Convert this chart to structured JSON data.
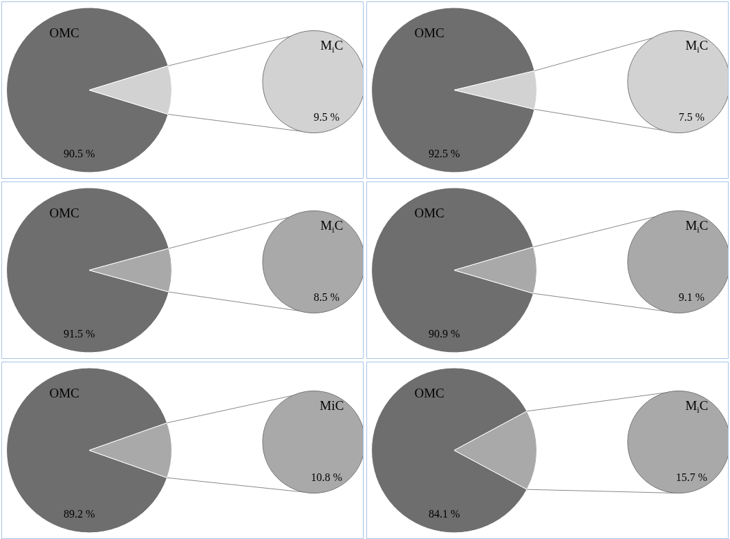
{
  "chart_data": [
    {
      "type": "pie",
      "categories": [
        "OMC",
        "M$_{i}$C"
      ],
      "values": [
        90.5,
        9.5
      ],
      "colors": [
        "#6e6e6e",
        "#d2d2d2"
      ],
      "value_labels": [
        "90.5 %",
        "9.5 %"
      ]
    },
    {
      "type": "pie",
      "categories": [
        "OMC",
        "M$_{i}$C"
      ],
      "values": [
        92.5,
        7.5
      ],
      "colors": [
        "#6e6e6e",
        "#d2d2d2"
      ],
      "value_labels": [
        "92.5 %",
        "7.5 %"
      ]
    },
    {
      "type": "pie",
      "categories": [
        "OMC",
        "M$_{i}$C"
      ],
      "values": [
        91.5,
        8.5
      ],
      "colors": [
        "#6e6e6e",
        "#a9a9a9"
      ],
      "value_labels": [
        "91.5 %",
        "8.5 %"
      ]
    },
    {
      "type": "pie",
      "categories": [
        "OMC",
        "M$_{i}$C"
      ],
      "values": [
        90.9,
        9.1
      ],
      "colors": [
        "#6e6e6e",
        "#a9a9a9"
      ],
      "value_labels": [
        "90.9 %",
        "9.1 %"
      ]
    },
    {
      "type": "pie",
      "categories": [
        "OMC",
        "MiC"
      ],
      "values": [
        89.2,
        10.8
      ],
      "colors": [
        "#6e6e6e",
        "#a9a9a9"
      ],
      "value_labels": [
        "89.2 %",
        "10.8 %"
      ]
    },
    {
      "type": "pie",
      "categories": [
        "OMC",
        "M$_{i}$C"
      ],
      "values": [
        84.1,
        15.7
      ],
      "colors": [
        "#6e6e6e",
        "#a9a9a9"
      ],
      "value_labels": [
        "84.1 %",
        "15.7 %"
      ]
    }
  ]
}
